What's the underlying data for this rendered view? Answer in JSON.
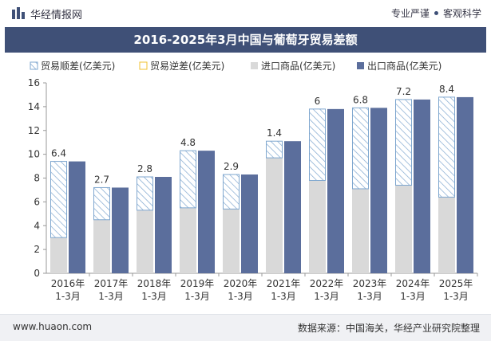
{
  "header": {
    "brand": "华经情报网",
    "tag_left": "专业严谨",
    "tag_right": "客观科学"
  },
  "footer": {
    "url": "www.huaon.com",
    "source": "数据来源：中国海关，华经产业研究院整理"
  },
  "colors": {
    "export": "#5b6e9c",
    "import": "#d9d9d9",
    "deficit": "#f1c232",
    "surplus_hatch": "#7fa7cf",
    "title_bg": "#3f5077"
  },
  "chart_data": {
    "type": "bar",
    "title": "2016-2025年3月中国与葡萄牙贸易差额",
    "legend": [
      "贸易顺差(亿美元)",
      "贸易逆差(亿美元)",
      "进口商品(亿美元)",
      "出口商品(亿美元)"
    ],
    "legend_position": "top",
    "categories": [
      [
        "2016年",
        "1-3月"
      ],
      [
        "2017年",
        "1-3月"
      ],
      [
        "2018年",
        "1-3月"
      ],
      [
        "2019年",
        "1-3月"
      ],
      [
        "2020年",
        "1-3月"
      ],
      [
        "2021年",
        "1-3月"
      ],
      [
        "2022年",
        "1-3月"
      ],
      [
        "2023年",
        "1-3月"
      ],
      [
        "2024年",
        "1-3月"
      ],
      [
        "2025年",
        "1-3月"
      ]
    ],
    "series": [
      {
        "name": "贸易顺差(亿美元)",
        "values": [
          6.4,
          2.7,
          2.8,
          4.8,
          2.9,
          1.4,
          6,
          6.8,
          7.2,
          8.4
        ]
      },
      {
        "name": "贸易逆差(亿美元)",
        "values": [
          0,
          0,
          0,
          0,
          0,
          0,
          0,
          0,
          0,
          0
        ]
      },
      {
        "name": "进口商品(亿美元)",
        "values": [
          3.0,
          4.5,
          5.3,
          5.5,
          5.4,
          9.7,
          7.8,
          7.1,
          7.4,
          6.4
        ]
      },
      {
        "name": "出口商品(亿美元)",
        "values": [
          9.4,
          7.2,
          8.1,
          10.3,
          8.3,
          11.1,
          13.8,
          13.9,
          14.6,
          14.8
        ]
      }
    ],
    "data_labels": [
      "6.4",
      "2.7",
      "2.8",
      "4.8",
      "2.9",
      "1.4",
      "6",
      "6.8",
      "7.2",
      "8.4"
    ],
    "ylim": [
      0,
      16
    ],
    "yticks": [
      0,
      2,
      4,
      6,
      8,
      10,
      12,
      14,
      16
    ],
    "grid": false
  }
}
